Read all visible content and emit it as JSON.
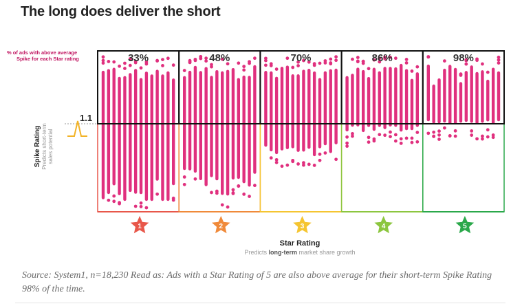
{
  "heading": "The long does deliver the short",
  "caption": "Source: System1, n=18,230 Read as: Ads with a Star Rating of 5 are also above average for their short-term Spike Rating 98% of the time.",
  "chart_data": {
    "type": "scatter",
    "x_axis": {
      "title": "Star Rating",
      "subtitle_prefix": "Predicts ",
      "subtitle_bold": "long-term",
      "subtitle_suffix": " market share growth",
      "categories": [
        "1",
        "2",
        "3",
        "4",
        "5"
      ],
      "category_colors": [
        "#e8574a",
        "#f08a3a",
        "#f5c531",
        "#8cc63f",
        "#2aa84a"
      ]
    },
    "y_axis": {
      "title": "Spike Rating",
      "subtitle_line1": "Predicts short-term",
      "subtitle_line2": "sales potential",
      "reference_value": "1.1"
    },
    "top_note_line1": "% of ads with above average",
    "top_note_line2": "Spike for each Star rating",
    "bands": [
      {
        "star": 1,
        "percent_above": "33%",
        "pct_value": 33
      },
      {
        "star": 2,
        "percent_above": "48%",
        "pct_value": 48
      },
      {
        "star": 3,
        "percent_above": "70%",
        "pct_value": 70
      },
      {
        "star": 4,
        "percent_above": "86%",
        "pct_value": 86
      },
      {
        "star": 5,
        "percent_above": "98%",
        "pct_value": 98
      }
    ],
    "point_color": "#e0307e",
    "grid": false,
    "legend": "none"
  }
}
